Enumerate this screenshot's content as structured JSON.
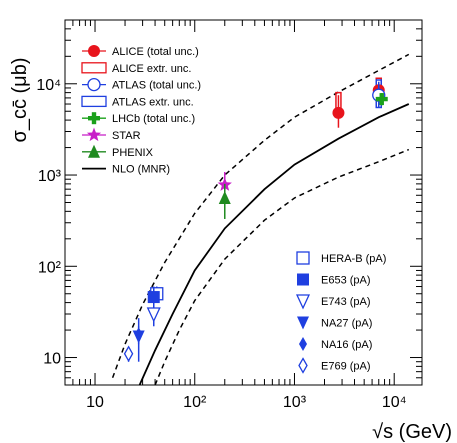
{
  "chart_data": {
    "type": "scatter",
    "xlabel": "√s (GeV)",
    "ylabel": "σ_cc̄ (μb)",
    "x_scale": "log",
    "y_scale": "log",
    "xlim": [
      5,
      19000
    ],
    "ylim": [
      5,
      50000
    ],
    "x_ticks": [
      {
        "value": 10,
        "label": "10"
      },
      {
        "value": 100,
        "label": "10²"
      },
      {
        "value": 1000,
        "label": "10³"
      },
      {
        "value": 10000,
        "label": "10⁴"
      }
    ],
    "y_ticks": [
      {
        "value": 10,
        "label": "10"
      },
      {
        "value": 100,
        "label": "10²"
      },
      {
        "value": 1000,
        "label": "10³"
      },
      {
        "value": 10000,
        "label": "10⁴"
      }
    ],
    "legend_top_left": [
      {
        "label": "ALICE (total unc.)",
        "marker": "circle",
        "color": "#e8141c"
      },
      {
        "label": "ALICE extr. unc.",
        "marker": "box",
        "color": "#e8141c"
      },
      {
        "label": "ATLAS (total unc.)",
        "marker": "open-circle",
        "color": "#1f3fe0"
      },
      {
        "label": "ATLAS extr. unc.",
        "marker": "box",
        "color": "#1f3fe0"
      },
      {
        "label": "LHCb (total unc.)",
        "marker": "cross",
        "color": "#1aa01a"
      },
      {
        "label": "STAR",
        "marker": "star",
        "color": "#c81ec8"
      },
      {
        "label": "PHENIX",
        "marker": "triangle-up",
        "color": "#1f8a1f"
      },
      {
        "label": "NLO (MNR)",
        "marker": "line",
        "color": "#000000"
      }
    ],
    "legend_bottom_right": [
      {
        "label": "HERA-B (pA)",
        "marker": "open-square",
        "color": "#1f3fe0"
      },
      {
        "label": "E653 (pA)",
        "marker": "square",
        "color": "#1f3fe0"
      },
      {
        "label": "E743 (pA)",
        "marker": "open-triangle-down",
        "color": "#1f3fe0"
      },
      {
        "label": "NA27 (pA)",
        "marker": "triangle-down",
        "color": "#1f3fe0"
      },
      {
        "label": "NA16 (pA)",
        "marker": "diamond",
        "color": "#1f3fe0"
      },
      {
        "label": "E769 (pA)",
        "marker": "open-diamond",
        "color": "#1f3fe0"
      }
    ],
    "series": [
      {
        "name": "NLO (MNR)",
        "style": "solid",
        "x": [
          28,
          40,
          60,
          100,
          200,
          500,
          1000,
          2760,
          7000,
          14000
        ],
        "y": [
          5,
          12,
          30,
          90,
          260,
          700,
          1300,
          2500,
          4300,
          6000
        ]
      },
      {
        "name": "NLO (MNR) upper",
        "style": "dashed",
        "x": [
          15,
          20,
          30,
          50,
          100,
          200,
          500,
          1000,
          2760,
          7000,
          14000
        ],
        "y": [
          6,
          14,
          38,
          110,
          380,
          1000,
          2400,
          4300,
          8100,
          14000,
          21000
        ]
      },
      {
        "name": "NLO (MNR) lower",
        "style": "dashed",
        "x": [
          40,
          50,
          70,
          100,
          200,
          500,
          1000,
          2760,
          7000,
          14000
        ],
        "y": [
          5,
          9,
          20,
          42,
          120,
          320,
          560,
          950,
          1400,
          1900
        ]
      }
    ],
    "points": [
      {
        "experiment": "ALICE (total unc.)",
        "marker": "circle",
        "color": "#e8141c",
        "x": 2760,
        "y": 4800,
        "y_low": 3300,
        "y_high": 7500
      },
      {
        "experiment": "ALICE (total unc.)",
        "marker": "circle",
        "color": "#e8141c",
        "x": 7000,
        "y": 8500,
        "y_low": 6200,
        "y_high": 10500
      },
      {
        "experiment": "ALICE extr. unc.",
        "marker": "box",
        "color": "#e8141c",
        "x": 2760,
        "y_low": 4500,
        "y_high": 8000
      },
      {
        "experiment": "ALICE extr. unc.",
        "marker": "box",
        "color": "#e8141c",
        "x": 7000,
        "y_low": 6800,
        "y_high": 11500
      },
      {
        "experiment": "ATLAS (total unc.)",
        "marker": "open-circle",
        "color": "#1f3fe0",
        "x": 7000,
        "y": 7500,
        "y_low": 5500,
        "y_high": 10500
      },
      {
        "experiment": "ATLAS extr. unc.",
        "marker": "box",
        "color": "#1f3fe0",
        "x": 7000,
        "y_low": 5500,
        "y_high": 11000
      },
      {
        "experiment": "LHCb (total unc.)",
        "marker": "cross",
        "color": "#1aa01a",
        "x": 7500,
        "y": 6800,
        "y_low": 5800,
        "y_high": 7900
      },
      {
        "experiment": "STAR",
        "marker": "star",
        "color": "#c81ec8",
        "x": 200,
        "y": 780,
        "y_low": 480,
        "y_high": 1080
      },
      {
        "experiment": "PHENIX",
        "marker": "triangle-up",
        "color": "#1f8a1f",
        "x": 200,
        "y": 560,
        "y_low": 330,
        "y_high": 800
      },
      {
        "experiment": "HERA-B (pA)",
        "marker": "open-square",
        "color": "#1f3fe0",
        "x": 41.6,
        "y": 50,
        "y_low": 40,
        "y_high": 60
      },
      {
        "experiment": "E653 (pA)",
        "marker": "square",
        "color": "#1f3fe0",
        "x": 38.8,
        "y": 46,
        "y_low": 33,
        "y_high": 60
      },
      {
        "experiment": "E743 (pA)",
        "marker": "open-triangle-down",
        "color": "#1f3fe0",
        "x": 38.8,
        "y": 30,
        "y_low": 22,
        "y_high": 39
      },
      {
        "experiment": "NA27 (pA)",
        "marker": "triangle-down",
        "color": "#1f3fe0",
        "x": 27.4,
        "y": 17,
        "y_low": 9,
        "y_high": 27
      },
      {
        "experiment": "NA16 (pA)",
        "marker": "diamond",
        "color": "#1f3fe0",
        "x": 27.4,
        "y": 18,
        "y_low": 14,
        "y_high": 22
      },
      {
        "experiment": "E769 (pA)",
        "marker": "open-diamond",
        "color": "#1f3fe0",
        "x": 21.7,
        "y": 11,
        "y_low": 9,
        "y_high": 13
      }
    ]
  }
}
